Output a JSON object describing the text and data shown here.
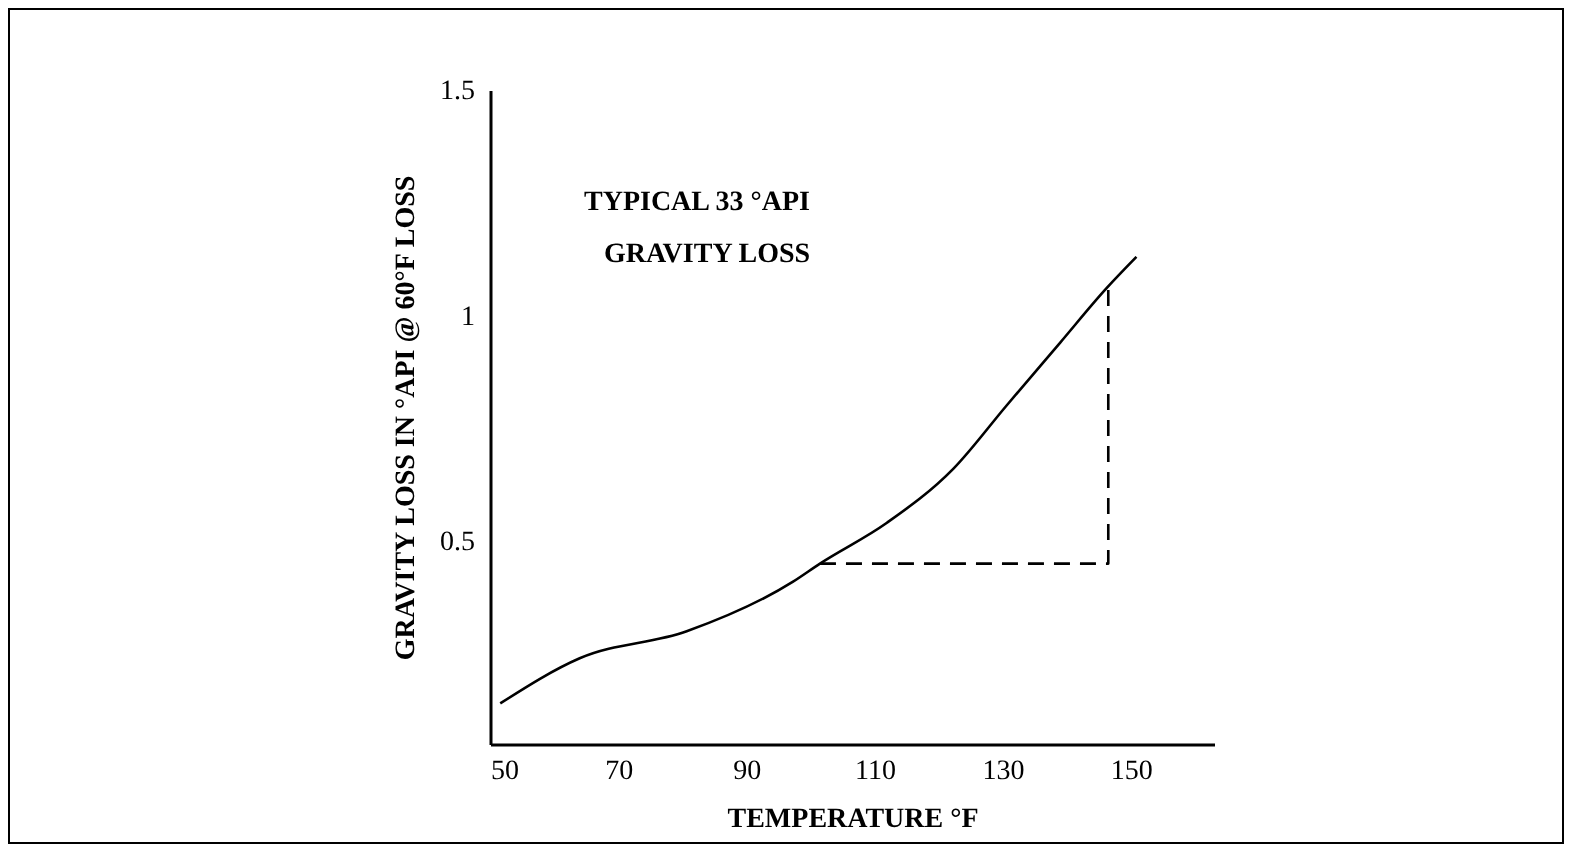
{
  "chart_data": {
    "type": "line",
    "xlabel": "TEMPERATURE °F",
    "ylabel": "GRAVITY LOSS IN °API @ 60°F LOSS",
    "annotations": [
      "TYPICAL 33 °API",
      "GRAVITY LOSS"
    ],
    "xlim": [
      50,
      163
    ],
    "xticks": [
      50,
      70,
      90,
      110,
      130,
      150
    ],
    "ylim": [
      0.05,
      1.5
    ],
    "yticks": [
      0.5,
      1,
      1.5
    ],
    "series": [
      {
        "color": "#000000",
        "line_style": "solid",
        "x": [
          51.6,
          64,
          80.7,
          97.3,
          101.5,
          111.9,
          122.3,
          130.6,
          139,
          146.2,
          150.9
        ],
        "values": [
          0.14,
          0.24,
          0.3,
          0.41,
          0.45,
          0.54,
          0.66,
          0.8,
          0.94,
          1.06,
          1.13
        ]
      },
      {
        "color": "#000000",
        "line_style": "dashed",
        "x": [
          101.5,
          146.5,
          146.5
        ],
        "values": [
          0.45,
          0.45,
          1.06
        ]
      }
    ]
  }
}
